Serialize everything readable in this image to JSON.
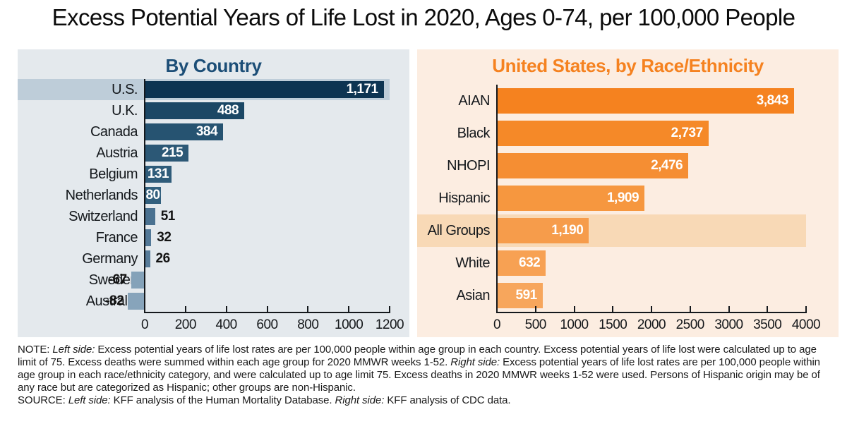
{
  "title": "Excess Potential Years of Life Lost in 2020, Ages 0-74, per 100,000 People",
  "chart_data": [
    {
      "type": "bar",
      "orientation": "horizontal",
      "title": "By Country",
      "title_color": "#1C4E77",
      "panel_bg": "#E4E9ED",
      "axis_color": "#14181C",
      "grid": false,
      "xlim": [
        0,
        1200
      ],
      "xticks": [
        0,
        200,
        400,
        600,
        800,
        1000,
        1200
      ],
      "xtick_labels": [
        "0",
        "200",
        "400",
        "600",
        "800",
        "1000",
        "1200"
      ],
      "highlight": {
        "index": 0,
        "color": "#BECDD9"
      },
      "rows": [
        {
          "category": "U.S.",
          "value": 1171,
          "label": "1,171",
          "color": "#0D3452"
        },
        {
          "category": "U.K.",
          "value": 488,
          "label": "488",
          "color": "#1B4765"
        },
        {
          "category": "Canada",
          "value": 384,
          "label": "384",
          "color": "#265371"
        },
        {
          "category": "Austria",
          "value": 215,
          "label": "215",
          "color": "#2C5876"
        },
        {
          "category": "Belgium",
          "value": 131,
          "label": "131",
          "color": "#2F5C7A"
        },
        {
          "category": "Netherlands",
          "value": 80,
          "label": "80",
          "color": "#32607E"
        },
        {
          "category": "Switzerland",
          "value": 51,
          "label": "51",
          "color": "#4A7190"
        },
        {
          "category": "France",
          "value": 32,
          "label": "32",
          "color": "#527897"
        },
        {
          "category": "Germany",
          "value": 26,
          "label": "26",
          "color": "#567B99"
        },
        {
          "category": "Sweden",
          "value": -67,
          "label": "-67",
          "color": "#84A2B9"
        },
        {
          "category": "Australia",
          "value": -82,
          "label": "-82",
          "color": "#87A4BB"
        }
      ]
    },
    {
      "type": "bar",
      "orientation": "horizontal",
      "title": "United States, by Race/Ethnicity",
      "title_color": "#F58220",
      "panel_bg": "#FCEDE1",
      "axis_color": "#14181C",
      "grid": false,
      "xlim": [
        0,
        4000
      ],
      "xticks": [
        0,
        500,
        1000,
        1500,
        2000,
        2500,
        3000,
        3500,
        4000
      ],
      "xtick_labels": [
        "0",
        "500",
        "1000",
        "1500",
        "2000",
        "2500",
        "3000",
        "3500",
        "4000"
      ],
      "highlight": {
        "index": 4,
        "color": "#F8D9B6"
      },
      "rows": [
        {
          "category": "AIAN",
          "value": 3843,
          "label": "3,843",
          "color": "#F5821F"
        },
        {
          "category": "Black",
          "value": 2737,
          "label": "2,737",
          "color": "#F58928"
        },
        {
          "category": "NHOPI",
          "value": 2476,
          "label": "2,476",
          "color": "#F58E33"
        },
        {
          "category": "Hispanic",
          "value": 1909,
          "label": "1,909",
          "color": "#F6973F"
        },
        {
          "category": "All Groups",
          "value": 1190,
          "label": "1,190",
          "color": "#F69C4B"
        },
        {
          "category": "White",
          "value": 632,
          "label": "632",
          "color": "#F7A153"
        },
        {
          "category": "Asian",
          "value": 591,
          "label": "591",
          "color": "#F7A65C"
        }
      ]
    }
  ],
  "footnote": {
    "note_segments": [
      {
        "text": "NOTE: ",
        "italic": false
      },
      {
        "text": "Left side: ",
        "italic": true
      },
      {
        "text": "Excess potential years of life lost rates are per 100,000 people within age group in each country. Excess potential years of life lost were calculated up to age limit of 75. Excess deaths were summed within each age group for 2020 MMWR weeks 1-52. ",
        "italic": false
      },
      {
        "text": "Right side: ",
        "italic": true
      },
      {
        "text": "Excess potential years of life lost rates are per 100,000 people within age group in each race/ethnicity category, and were calculated up to age limit 75. Excess deaths in 2020 MMWR weeks 1-52 were used. Persons of Hispanic origin may be of any race but are categorized as Hispanic; other groups are non-Hispanic.",
        "italic": false
      }
    ],
    "source_segments": [
      {
        "text": "SOURCE: ",
        "italic": false
      },
      {
        "text": "Left side: ",
        "italic": true
      },
      {
        "text": "KFF analysis of the Human Mortality Database. ",
        "italic": false
      },
      {
        "text": "Right side: ",
        "italic": true
      },
      {
        "text": "KFF analysis of CDC data.",
        "italic": false
      }
    ]
  }
}
